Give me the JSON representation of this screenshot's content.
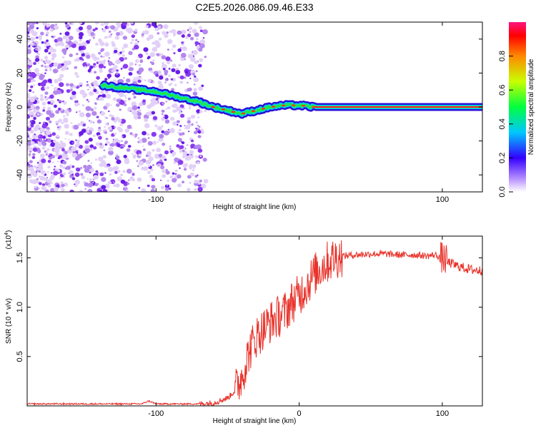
{
  "title": "C2E5.2026.086.09.46.E33",
  "chart_data": [
    {
      "type": "heatmap",
      "name": "spectrogram",
      "xlabel": "Height of straight line (km)",
      "ylabel": "Frequency (Hz)",
      "xlim": [
        -190,
        128
      ],
      "ylim": [
        -50,
        50
      ],
      "xticks": [
        {
          "value": -100,
          "label": "-100"
        },
        {
          "value": 100,
          "label": "100"
        }
      ],
      "yticks": [
        {
          "value": 40,
          "label": "40"
        },
        {
          "value": 20,
          "label": "20"
        },
        {
          "value": 0,
          "label": "0"
        },
        {
          "value": -20,
          "label": "-20"
        },
        {
          "value": -40,
          "label": "-40"
        }
      ],
      "grid": false,
      "colorbar": {
        "label": "Normalized spectral amplitude",
        "range": [
          0,
          1
        ],
        "ticks": [
          {
            "value": 0.0,
            "label": "0.0"
          },
          {
            "value": 0.2,
            "label": "0.2"
          },
          {
            "value": 0.4,
            "label": "0.4"
          },
          {
            "value": 0.6,
            "label": "0.6"
          },
          {
            "value": 0.8,
            "label": "0.8"
          }
        ]
      },
      "ridge": {
        "x": [
          -138,
          -130,
          -120,
          -110,
          -100,
          -90,
          -80,
          -70,
          -60,
          -50,
          -40,
          -30,
          -20,
          -10,
          0,
          10,
          128
        ],
        "freq": [
          13,
          12,
          11,
          10,
          9,
          7,
          5,
          3,
          0,
          -2,
          -4,
          -2,
          0,
          1,
          1,
          0,
          0
        ]
      },
      "noise_region": {
        "x_from": -190,
        "x_to": -70
      }
    },
    {
      "type": "line",
      "name": "snr",
      "xlabel": "Height of straight line (km)",
      "ylabel": "SNR (10 * v/v)",
      "multiplier_label": "(x10",
      "multiplier_exponent": "4",
      "xlim": [
        -190,
        128
      ],
      "ylim": [
        0,
        1.72
      ],
      "xticks": [
        {
          "value": -100,
          "label": "-100"
        },
        {
          "value": 0,
          "label": "0"
        },
        {
          "value": 100,
          "label": "100"
        }
      ],
      "yticks": [
        {
          "value": 0.5,
          "label": "0.5"
        },
        {
          "value": 1.0,
          "label": "1.0"
        },
        {
          "value": 1.5,
          "label": "1.5"
        }
      ],
      "grid": false,
      "series": [
        {
          "name": "SNR",
          "color": "#e8322a",
          "x": [
            -190,
            -150,
            -110,
            -105,
            -100,
            -70,
            -60,
            -50,
            -45,
            -40,
            -35,
            -30,
            -25,
            -20,
            -15,
            -10,
            -5,
            0,
            5,
            10,
            15,
            20,
            25,
            30,
            40,
            50,
            60,
            70,
            80,
            90,
            95,
            100,
            105,
            110,
            115,
            120,
            128
          ],
          "values": [
            0.02,
            0.02,
            0.02,
            0.05,
            0.02,
            0.02,
            0.03,
            0.08,
            0.15,
            0.3,
            0.55,
            0.7,
            0.78,
            0.85,
            0.9,
            0.95,
            1.05,
            1.12,
            1.22,
            1.32,
            1.4,
            1.46,
            1.5,
            1.52,
            1.53,
            1.54,
            1.54,
            1.53,
            1.53,
            1.52,
            1.53,
            1.5,
            1.45,
            1.42,
            1.4,
            1.38,
            1.37
          ]
        }
      ]
    }
  ]
}
